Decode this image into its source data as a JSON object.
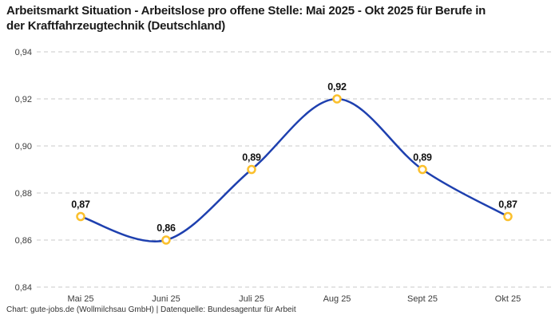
{
  "header": {
    "title": "Arbeitsmarkt Situation - Arbeitslose pro offene Stelle: Mai 2025 - Okt 2025 für Berufe in der Kraftfahrzeugtechnik (Deutschland)"
  },
  "chart_data": {
    "type": "line",
    "title": "Arbeitsmarkt Situation - Arbeitslose pro offene Stelle: Mai 2025 - Okt 2025 für Berufe in der Kraftfahrzeugtechnik (Deutschland)",
    "series_name": "Arbeitslose pro offene Stelle",
    "categories": [
      "Mai 25",
      "Juni 25",
      "Juli 25",
      "Aug 25",
      "Sept 25",
      "Okt 25"
    ],
    "values": [
      0.87,
      0.86,
      0.89,
      0.92,
      0.89,
      0.87
    ],
    "point_labels": [
      "0,87",
      "0,86",
      "0,89",
      "0,92",
      "0,89",
      "0,87"
    ],
    "y_ticks": [
      0.84,
      0.86,
      0.88,
      0.9,
      0.92,
      0.94
    ],
    "y_tick_labels": [
      "0,84",
      "0,86",
      "0,88",
      "0,90",
      "0,92",
      "0,94"
    ],
    "ylim": [
      0.84,
      0.94
    ],
    "xlabel": "",
    "ylabel": "",
    "grid": "horizontal-dashed",
    "legend": "none",
    "line_style": "smooth",
    "colors": {
      "line": "#1e40af",
      "marker_ring": "#fbc02d",
      "marker_fill": "#ffffff",
      "grid": "#c9c9c9",
      "title_text": "#1a1a1a",
      "tick_text": "#3c3c3c",
      "point_label_text": "#111111"
    }
  },
  "footer": {
    "text": "Chart: gute-jobs.de (Wollmilchsau GmbH) | Datenquelle: Bundesagentur für Arbeit"
  }
}
